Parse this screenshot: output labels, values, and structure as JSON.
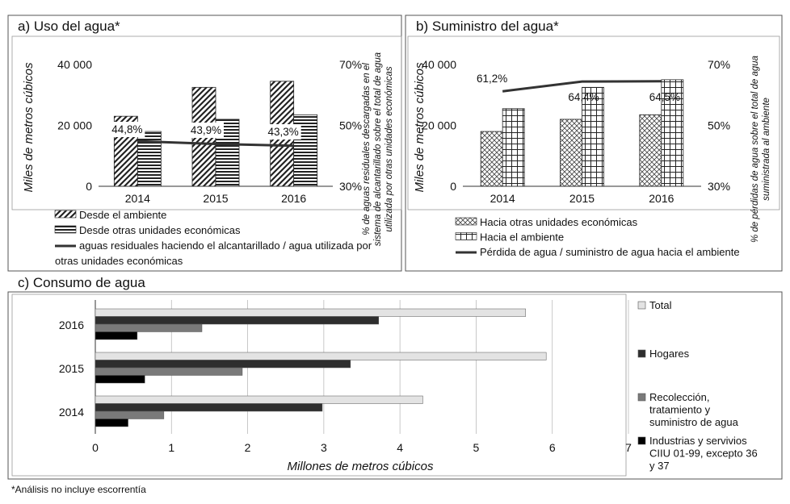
{
  "colors": {
    "line": "#333333",
    "frame": "#555555",
    "grid": "#bbbbbb",
    "total": "#e3e3e3",
    "hogares": "#2e2e2e",
    "recoleccion": "#7a7a7a",
    "industrias": "#000000"
  },
  "footnote": "*Análisis no incluye escorrentía",
  "chart_data": [
    {
      "id": "a",
      "type": "bar",
      "title": "a) Uso del agua*",
      "ylabel": "Miles de metros cúbicos",
      "y2label_lines": [
        "% de aguas residuales descargadas en el",
        "sistema de alcantarillado sobre el total de agua",
        "utilizada por otras unidades económicas"
      ],
      "categories": [
        "2014",
        "2015",
        "2016"
      ],
      "ylim": [
        0,
        40000
      ],
      "yticks": [
        {
          "v": 0,
          "t": "0"
        },
        {
          "v": 20000,
          "t": "20 000"
        },
        {
          "v": 40000,
          "t": "40 000"
        }
      ],
      "y2lim": [
        30,
        70
      ],
      "y2ticks": [
        {
          "v": 30,
          "t": "30%"
        },
        {
          "v": 50,
          "t": "50%"
        },
        {
          "v": 70,
          "t": "70%"
        }
      ],
      "series": [
        {
          "name": "Desde el ambiente",
          "pattern": "diag",
          "values": [
            23000,
            32500,
            34500
          ]
        },
        {
          "name": "Desde otras unidades económicas",
          "pattern": "horiz",
          "values": [
            18000,
            22000,
            23500
          ]
        }
      ],
      "line": {
        "name": "aguas residuales haciendo el alcantarillado / agua utilizada por otras unidades económicas",
        "values": [
          44.8,
          43.9,
          43.3
        ],
        "labels": [
          "44,8%",
          "43,9%",
          "43,3%"
        ]
      },
      "legend": [
        {
          "pattern": "diag",
          "label": "Desde el ambiente"
        },
        {
          "pattern": "horiz",
          "label": "Desde otras unidades económicas"
        },
        {
          "pattern": "line",
          "label": "aguas residuales haciendo el alcantarillado / agua utilizada por"
        },
        {
          "pattern": "none",
          "label": "otras unidades económicas"
        }
      ]
    },
    {
      "id": "b",
      "type": "bar",
      "title": "b) Suministro del agua*",
      "ylabel": "Miles de metros cúbicos",
      "y2label_lines": [
        "% de pérdidas de agua sobre el total de agua",
        "suministrada al ambiente"
      ],
      "categories": [
        "2014",
        "2015",
        "2016"
      ],
      "ylim": [
        0,
        40000
      ],
      "yticks": [
        {
          "v": 0,
          "t": "0"
        },
        {
          "v": 20000,
          "t": "20 000"
        },
        {
          "v": 40000,
          "t": "40 000"
        }
      ],
      "y2lim": [
        30,
        70
      ],
      "y2ticks": [
        {
          "v": 30,
          "t": "30%"
        },
        {
          "v": 50,
          "t": "50%"
        },
        {
          "v": 70,
          "t": "70%"
        }
      ],
      "series": [
        {
          "name": "Hacia otras unidades económicas",
          "pattern": "cross",
          "values": [
            18000,
            22000,
            23500
          ]
        },
        {
          "name": "Hacia el ambiente",
          "pattern": "grid",
          "values": [
            25500,
            32500,
            35000
          ]
        }
      ],
      "line": {
        "name": "Pérdida de agua / suministro de agua hacia el ambiente",
        "values": [
          61.2,
          64.4,
          64.5
        ],
        "labels": [
          "61,2%",
          "64,4%",
          "64,5%"
        ]
      },
      "legend": [
        {
          "pattern": "cross",
          "label": "Hacia otras unidades económicas"
        },
        {
          "pattern": "grid",
          "label": "Hacia el ambiente"
        },
        {
          "pattern": "line",
          "label": "Pérdida de agua / suministro de agua hacia el ambiente"
        }
      ]
    },
    {
      "id": "c",
      "type": "bar",
      "orientation": "horizontal",
      "title": "c) Consumo de agua",
      "xlabel": "Millones de metros cúbicos",
      "xlim": [
        0,
        7
      ],
      "xticks": [
        0,
        1,
        2,
        3,
        4,
        5,
        6,
        7
      ],
      "categories": [
        "2016",
        "2015",
        "2014"
      ],
      "series": [
        {
          "name": "Total",
          "colorKey": "total",
          "values": [
            5.65,
            5.92,
            4.3
          ]
        },
        {
          "name": "Hogares",
          "colorKey": "hogares",
          "values": [
            3.72,
            3.35,
            2.98
          ]
        },
        {
          "name": "Recolección, tratamiento y suministro de agua",
          "colorKey": "recoleccion",
          "values": [
            1.4,
            1.93,
            0.9
          ]
        },
        {
          "name": "Industrias y servivios CIIU 01-99, excepto 36 y 37",
          "colorKey": "industrias",
          "values": [
            0.55,
            0.65,
            0.43
          ]
        }
      ],
      "legend": [
        {
          "colorKey": "total",
          "lines": [
            "Total"
          ]
        },
        {
          "colorKey": "hogares",
          "lines": [
            "Hogares"
          ]
        },
        {
          "colorKey": "recoleccion",
          "lines": [
            "Recolección,",
            "tratamiento y",
            "suministro de agua"
          ]
        },
        {
          "colorKey": "industrias",
          "lines": [
            "Industrias y servivios",
            "CIIU 01-99, excepto 36",
            "y 37"
          ]
        }
      ]
    }
  ]
}
